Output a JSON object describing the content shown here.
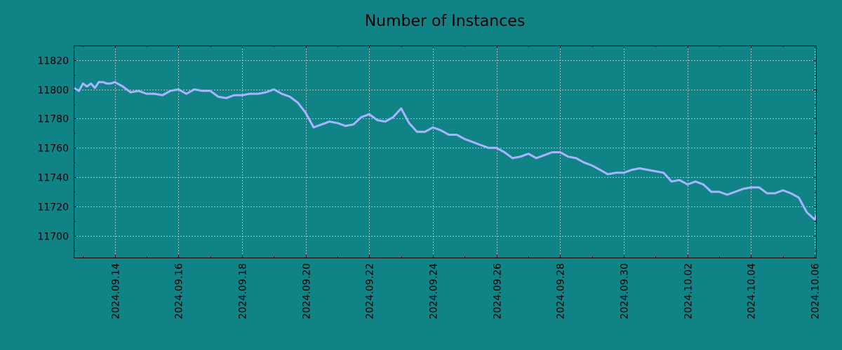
{
  "colors": {
    "background": "#108387",
    "line": "#a9b4ff",
    "grid": "#cfcfcf",
    "axis": "#000000"
  },
  "chart_data": {
    "type": "line",
    "title": "Number of Instances",
    "xlabel": "",
    "ylabel": "",
    "grid": true,
    "legend": "none",
    "xlim": [
      "2024.09.12 17:00",
      "2024.10.06 01:00"
    ],
    "ylim": [
      11685,
      11830
    ],
    "yticks": [
      11700,
      11720,
      11740,
      11760,
      11780,
      11800,
      11820
    ],
    "xticks": [
      "2024.09.14",
      "2024.09.16",
      "2024.09.18",
      "2024.09.20",
      "2024.09.22",
      "2024.09.24",
      "2024.09.26",
      "2024.09.28",
      "2024.09.30",
      "2024.10.02",
      "2024.10.04",
      "2024.10.06"
    ],
    "series": [
      {
        "x": [
          "2024.09.12 17:00",
          "2024.09.12 21:00",
          "2024.09.13 00:00",
          "2024.09.13 03:00",
          "2024.09.13 06:00",
          "2024.09.13 09:00",
          "2024.09.13 12:00",
          "2024.09.13 15:00",
          "2024.09.13 18:00",
          "2024.09.13 21:00",
          "2024.09.14 00:00",
          "2024.09.14 06:00",
          "2024.09.14 12:00",
          "2024.09.14 18:00",
          "2024.09.15 00:00",
          "2024.09.15 06:00",
          "2024.09.15 12:00",
          "2024.09.15 18:00",
          "2024.09.16 00:00",
          "2024.09.16 06:00",
          "2024.09.16 12:00",
          "2024.09.16 18:00",
          "2024.09.17 00:00",
          "2024.09.17 06:00",
          "2024.09.17 12:00",
          "2024.09.17 18:00",
          "2024.09.18 00:00",
          "2024.09.18 06:00",
          "2024.09.18 12:00",
          "2024.09.18 18:00",
          "2024.09.19 00:00",
          "2024.09.19 06:00",
          "2024.09.19 12:00",
          "2024.09.19 18:00",
          "2024.09.20 00:00",
          "2024.09.20 06:00",
          "2024.09.20 12:00",
          "2024.09.20 18:00",
          "2024.09.21 00:00",
          "2024.09.21 06:00",
          "2024.09.21 12:00",
          "2024.09.21 18:00",
          "2024.09.22 00:00",
          "2024.09.22 06:00",
          "2024.09.22 12:00",
          "2024.09.22 18:00",
          "2024.09.23 00:00",
          "2024.09.23 06:00",
          "2024.09.23 12:00",
          "2024.09.23 18:00",
          "2024.09.24 00:00",
          "2024.09.24 06:00",
          "2024.09.24 12:00",
          "2024.09.24 18:00",
          "2024.09.25 00:00",
          "2024.09.25 06:00",
          "2024.09.25 12:00",
          "2024.09.25 18:00",
          "2024.09.26 00:00",
          "2024.09.26 06:00",
          "2024.09.26 12:00",
          "2024.09.26 18:00",
          "2024.09.27 00:00",
          "2024.09.27 06:00",
          "2024.09.27 12:00",
          "2024.09.27 18:00",
          "2024.09.28 00:00",
          "2024.09.28 06:00",
          "2024.09.28 12:00",
          "2024.09.28 18:00",
          "2024.09.29 00:00",
          "2024.09.29 06:00",
          "2024.09.29 12:00",
          "2024.09.29 18:00",
          "2024.09.30 00:00",
          "2024.09.30 06:00",
          "2024.09.30 12:00",
          "2024.09.30 18:00",
          "2024.10.01 00:00",
          "2024.10.01 06:00",
          "2024.10.01 12:00",
          "2024.10.01 18:00",
          "2024.10.02 00:00",
          "2024.10.02 06:00",
          "2024.10.02 12:00",
          "2024.10.02 18:00",
          "2024.10.03 00:00",
          "2024.10.03 06:00",
          "2024.10.03 12:00",
          "2024.10.03 18:00",
          "2024.10.04 00:00",
          "2024.10.04 06:00",
          "2024.10.04 12:00",
          "2024.10.04 18:00",
          "2024.10.05 00:00",
          "2024.10.05 06:00",
          "2024.10.05 12:00",
          "2024.10.05 18:00",
          "2024.10.06 00:00",
          "2024.10.06 01:00"
        ],
        "values": [
          11801,
          11799,
          11804,
          11802,
          11804,
          11801,
          11805,
          11805,
          11804,
          11804,
          11805,
          11802,
          11798,
          11799,
          11797,
          11797,
          11796,
          11799,
          11800,
          11797,
          11800,
          11799,
          11799,
          11795,
          11794,
          11796,
          11796,
          11797,
          11797,
          11798,
          11800,
          11797,
          11795,
          11791,
          11784,
          11774,
          11776,
          11778,
          11777,
          11775,
          11776,
          11781,
          11783,
          11779,
          11778,
          11781,
          11787,
          11777,
          11771,
          11771,
          11774,
          11772,
          11769,
          11769,
          11766,
          11764,
          11762,
          11760,
          11760,
          11757,
          11753,
          11754,
          11756,
          11753,
          11755,
          11757,
          11757,
          11754,
          11753,
          11750,
          11748,
          11745,
          11742,
          11743,
          11743,
          11745,
          11746,
          11745,
          11744,
          11743,
          11737,
          11738,
          11735,
          11737,
          11735,
          11730,
          11730,
          11728,
          11730,
          11732,
          11733,
          11733,
          11729,
          11729,
          11731,
          11729,
          11726,
          11716,
          11711,
          11714
        ]
      }
    ]
  }
}
